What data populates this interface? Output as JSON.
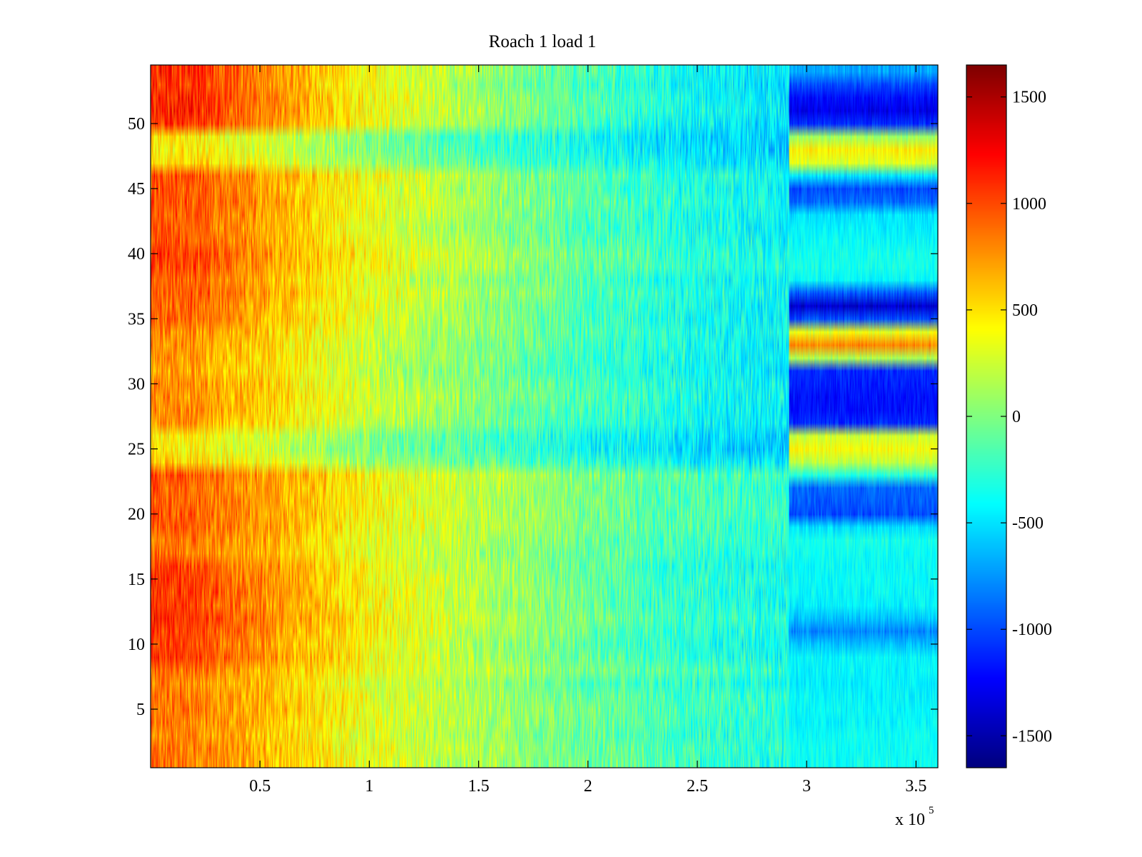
{
  "chart_data": {
    "type": "heatmap",
    "title": "Roach 1 load 1",
    "xlabel": "",
    "ylabel": "",
    "x_range": [
      0,
      360000
    ],
    "x_ticks": [
      50000,
      100000,
      150000,
      200000,
      250000,
      300000,
      350000
    ],
    "x_tick_labels": [
      "0.5",
      "1",
      "1.5",
      "2",
      "2.5",
      "3",
      "3.5"
    ],
    "x_exponent_label": "x 10",
    "x_exponent_power": "5",
    "y_range": [
      0.5,
      54.5
    ],
    "y_ticks": [
      5,
      10,
      15,
      20,
      25,
      30,
      35,
      40,
      45,
      50
    ],
    "y_tick_labels": [
      "5",
      "10",
      "15",
      "20",
      "25",
      "30",
      "35",
      "40",
      "45",
      "50"
    ],
    "rows": 54,
    "colormap": "jet",
    "colorbar": {
      "range": [
        -1650,
        1650
      ],
      "ticks": [
        -1500,
        -1000,
        -500,
        0,
        500,
        1000,
        1500
      ],
      "tick_labels": [
        "-1500",
        "-1000",
        "-500",
        "0",
        "500",
        "1000",
        "1500"
      ]
    },
    "profile_x": [
      0,
      20000,
      50000,
      100000,
      150000,
      200000,
      250000,
      290000,
      360000
    ],
    "profile_values": [
      950,
      900,
      700,
      350,
      120,
      -100,
      -280,
      -350,
      -430
    ],
    "row_groups": [
      {
        "rows": [
          1,
          8
        ],
        "start": 850,
        "end": -380
      },
      {
        "rows": [
          9,
          16
        ],
        "start": 1100,
        "end": -430
      },
      {
        "rows": [
          17,
          23
        ],
        "start": 950,
        "end": -330
      },
      {
        "rows": [
          24,
          26
        ],
        "start": 520,
        "end": -580
      },
      {
        "rows": [
          27,
          34
        ],
        "start": 800,
        "end": -500
      },
      {
        "rows": [
          35,
          46
        ],
        "start": 1000,
        "end": -480
      },
      {
        "rows": [
          47,
          49
        ],
        "start": 550,
        "end": -580
      },
      {
        "rows": [
          50,
          54
        ],
        "start": 1150,
        "end": -580
      }
    ],
    "segment_x_start": 292000,
    "segment_rows": [
      {
        "row": 1,
        "value": -380
      },
      {
        "row": 2,
        "value": -380
      },
      {
        "row": 3,
        "value": -380
      },
      {
        "row": 4,
        "value": -420
      },
      {
        "row": 5,
        "value": -420
      },
      {
        "row": 6,
        "value": -430
      },
      {
        "row": 7,
        "value": -450
      },
      {
        "row": 8,
        "value": -430
      },
      {
        "row": 9,
        "value": -430
      },
      {
        "row": 10,
        "value": -600
      },
      {
        "row": 11,
        "value": -800
      },
      {
        "row": 12,
        "value": -600
      },
      {
        "row": 13,
        "value": -450
      },
      {
        "row": 14,
        "value": -420
      },
      {
        "row": 15,
        "value": -400
      },
      {
        "row": 16,
        "value": -400
      },
      {
        "row": 17,
        "value": -380
      },
      {
        "row": 18,
        "value": -350
      },
      {
        "row": 19,
        "value": -500
      },
      {
        "row": 20,
        "value": -1000
      },
      {
        "row": 21,
        "value": -950
      },
      {
        "row": 22,
        "value": -900
      },
      {
        "row": 23,
        "value": -300
      },
      {
        "row": 24,
        "value": 200
      },
      {
        "row": 25,
        "value": 400
      },
      {
        "row": 26,
        "value": 250
      },
      {
        "row": 27,
        "value": -1100
      },
      {
        "row": 28,
        "value": -1200
      },
      {
        "row": 29,
        "value": -1200
      },
      {
        "row": 30,
        "value": -1150
      },
      {
        "row": 31,
        "value": -1100
      },
      {
        "row": 32,
        "value": 150
      },
      {
        "row": 33,
        "value": 800
      },
      {
        "row": 34,
        "value": 350
      },
      {
        "row": 35,
        "value": -1000
      },
      {
        "row": 36,
        "value": -1400
      },
      {
        "row": 37,
        "value": -950
      },
      {
        "row": 38,
        "value": -400
      },
      {
        "row": 39,
        "value": -350
      },
      {
        "row": 40,
        "value": -350
      },
      {
        "row": 41,
        "value": -400
      },
      {
        "row": 42,
        "value": -450
      },
      {
        "row": 43,
        "value": -500
      },
      {
        "row": 44,
        "value": -900
      },
      {
        "row": 45,
        "value": -1000
      },
      {
        "row": 46,
        "value": -500
      },
      {
        "row": 47,
        "value": 300
      },
      {
        "row": 48,
        "value": 450
      },
      {
        "row": 49,
        "value": 100
      },
      {
        "row": 50,
        "value": -1100
      },
      {
        "row": 51,
        "value": -1300
      },
      {
        "row": 52,
        "value": -1200
      },
      {
        "row": 53,
        "value": -1000
      },
      {
        "row": 54,
        "value": -700
      }
    ],
    "noise_amplitude": 260,
    "grid": false,
    "legend": "none"
  }
}
